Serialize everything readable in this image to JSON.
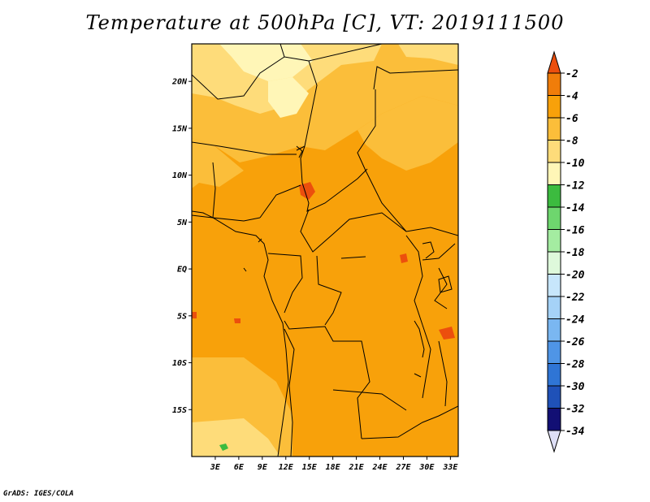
{
  "title": "Temperature at 500hPa [C], VT: 2019111500",
  "credit": "GrADS: IGES/COLA",
  "map": {
    "lon_range": [
      0,
      34
    ],
    "lat_range": [
      -20,
      24
    ],
    "lat_ticks": [
      {
        "value": 20,
        "label": "20N"
      },
      {
        "value": 15,
        "label": "15N"
      },
      {
        "value": 10,
        "label": "10N"
      },
      {
        "value": 5,
        "label": "5N"
      },
      {
        "value": 0,
        "label": "EQ"
      },
      {
        "value": -5,
        "label": "5S"
      },
      {
        "value": -10,
        "label": "10S"
      },
      {
        "value": -15,
        "label": "15S"
      }
    ],
    "lon_ticks": [
      {
        "value": 3,
        "label": "3E"
      },
      {
        "value": 6,
        "label": "6E"
      },
      {
        "value": 9,
        "label": "9E"
      },
      {
        "value": 12,
        "label": "12E"
      },
      {
        "value": 15,
        "label": "15E"
      },
      {
        "value": 18,
        "label": "18E"
      },
      {
        "value": 21,
        "label": "21E"
      },
      {
        "value": 24,
        "label": "24E"
      },
      {
        "value": 27,
        "label": "27E"
      },
      {
        "value": 30,
        "label": "30E"
      },
      {
        "value": 33,
        "label": "33E"
      }
    ]
  },
  "colorbar": {
    "levels": [
      "-2",
      "-4",
      "-6",
      "-8",
      "-10",
      "-12",
      "-14",
      "-16",
      "-18",
      "-20",
      "-22",
      "-24",
      "-26",
      "-28",
      "-30",
      "-32",
      "-34"
    ],
    "colors": [
      "#ec4f0d",
      "#f07d0a",
      "#f8a10a",
      "#fbbe3a",
      "#fedc7a",
      "#fff6b7",
      "#3cbb3f",
      "#6ed66e",
      "#a4eca1",
      "#def9db",
      "#c7e6fb",
      "#a5d2f7",
      "#7ab7f1",
      "#4f95e6",
      "#2f75d5",
      "#1f51b8",
      "#120f74",
      "#dedff6"
    ]
  }
}
